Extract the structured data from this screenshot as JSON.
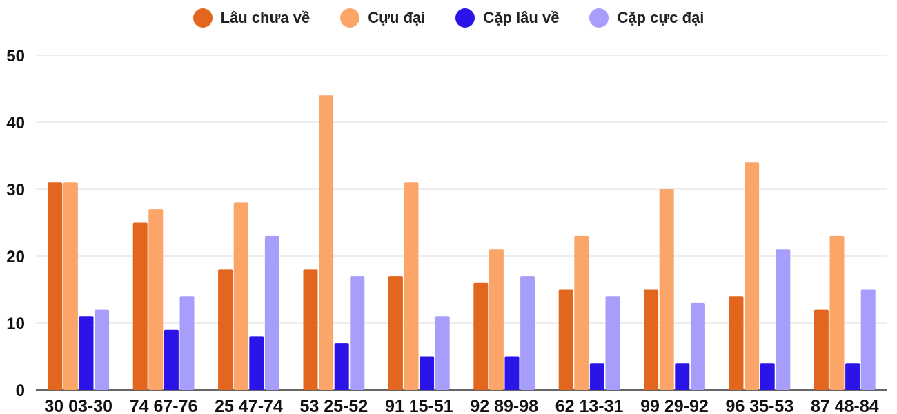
{
  "chart_data": {
    "type": "bar",
    "categories": [
      "30 03-30",
      "74 67-76",
      "25 47-74",
      "53 25-52",
      "91 15-51",
      "92 89-98",
      "62 13-31",
      "99 29-92",
      "96 35-53",
      "87 48-84"
    ],
    "series": [
      {
        "name": "Lâu chưa về",
        "color": "#e3661e",
        "values": [
          31,
          25,
          18,
          18,
          17,
          16,
          15,
          15,
          14,
          12
        ]
      },
      {
        "name": "Cựu đại",
        "color": "#fca569",
        "values": [
          31,
          27,
          28,
          44,
          31,
          21,
          23,
          30,
          34,
          23
        ]
      },
      {
        "name": "Cặp lâu về",
        "color": "#2a14e8",
        "values": [
          11,
          9,
          8,
          7,
          5,
          5,
          4,
          4,
          4,
          4
        ]
      },
      {
        "name": "Cặp cực đại",
        "color": "#a79dfb",
        "values": [
          12,
          14,
          23,
          17,
          11,
          17,
          14,
          13,
          21,
          15
        ]
      }
    ],
    "yticks": [
      "0",
      "10",
      "20",
      "30",
      "40",
      "50"
    ],
    "ylim": [
      0,
      50
    ],
    "grid": true,
    "legend_position": "top-center"
  }
}
